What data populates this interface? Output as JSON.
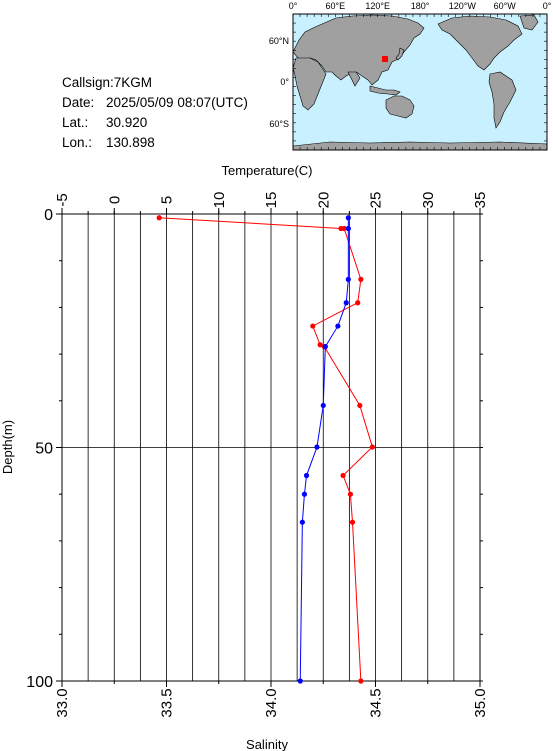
{
  "station": {
    "callsign_label": "Callsign:",
    "callsign": "7KGM",
    "date_label": "Date:",
    "date": "2025/05/09 08:07(UTC)",
    "lat_label": "Lat.:",
    "lat": "30.920",
    "lon_label": "Lon.:",
    "lon": "130.898"
  },
  "map": {
    "top_ticks": [
      "0°",
      "60°E",
      "120°E",
      "180°",
      "120°W",
      "60°W",
      "0°"
    ],
    "left_ticks": [
      "60°N",
      "0°",
      "60°S"
    ],
    "colors": {
      "ocean": "#c8f0ff",
      "land": "#a0a0a0",
      "marker": "#ff0000"
    }
  },
  "chart_data": {
    "type": "line",
    "depth_axis": {
      "label": "Depth(m)",
      "range": [
        0,
        100
      ],
      "ticks": [
        "0",
        "50",
        "100"
      ],
      "inverted": true
    },
    "temperature_axis": {
      "label": "Temperature(C)",
      "range": [
        -5,
        35
      ],
      "ticks": [
        "-5",
        "0",
        "5",
        "10",
        "15",
        "20",
        "25",
        "30",
        "35"
      ]
    },
    "salinity_axis": {
      "label": "Salinity",
      "range": [
        33.0,
        35.0
      ],
      "ticks": [
        "33.0",
        "33.5",
        "34.0",
        "34.5",
        "35.0"
      ]
    },
    "grid": true,
    "series": [
      {
        "quantity": "temperature",
        "color": "#ff0000",
        "points": [
          {
            "t": 4.3,
            "depth": 0.8
          },
          {
            "t": 21.7,
            "depth": 3.1
          },
          {
            "t": 22.0,
            "depth": 3.1
          },
          {
            "t": 23.6,
            "depth": 14.0
          },
          {
            "t": 23.3,
            "depth": 19.0
          },
          {
            "t": 19.0,
            "depth": 24.0
          },
          {
            "t": 19.7,
            "depth": 28.0
          },
          {
            "t": 20.1,
            "depth": 28.4
          },
          {
            "t": 23.5,
            "depth": 41.0
          },
          {
            "t": 24.7,
            "depth": 49.9
          },
          {
            "t": 21.9,
            "depth": 56.0
          },
          {
            "t": 22.6,
            "depth": 60.0
          },
          {
            "t": 22.8,
            "depth": 66.0
          },
          {
            "t": 23.6,
            "depth": 100.0
          }
        ]
      },
      {
        "quantity": "salinity",
        "color": "#0000ff",
        "points": [
          {
            "s": 34.37,
            "depth": 0.8
          },
          {
            "s": 34.37,
            "depth": 3.1
          },
          {
            "s": 34.37,
            "depth": 14.0
          },
          {
            "s": 34.36,
            "depth": 19.0
          },
          {
            "s": 34.32,
            "depth": 24.0
          },
          {
            "s": 34.26,
            "depth": 28.4
          },
          {
            "s": 34.25,
            "depth": 41.0
          },
          {
            "s": 34.22,
            "depth": 49.9
          },
          {
            "s": 34.17,
            "depth": 56.0
          },
          {
            "s": 34.16,
            "depth": 60.0
          },
          {
            "s": 34.15,
            "depth": 66.0
          },
          {
            "s": 34.14,
            "depth": 100.0
          }
        ]
      }
    ]
  }
}
